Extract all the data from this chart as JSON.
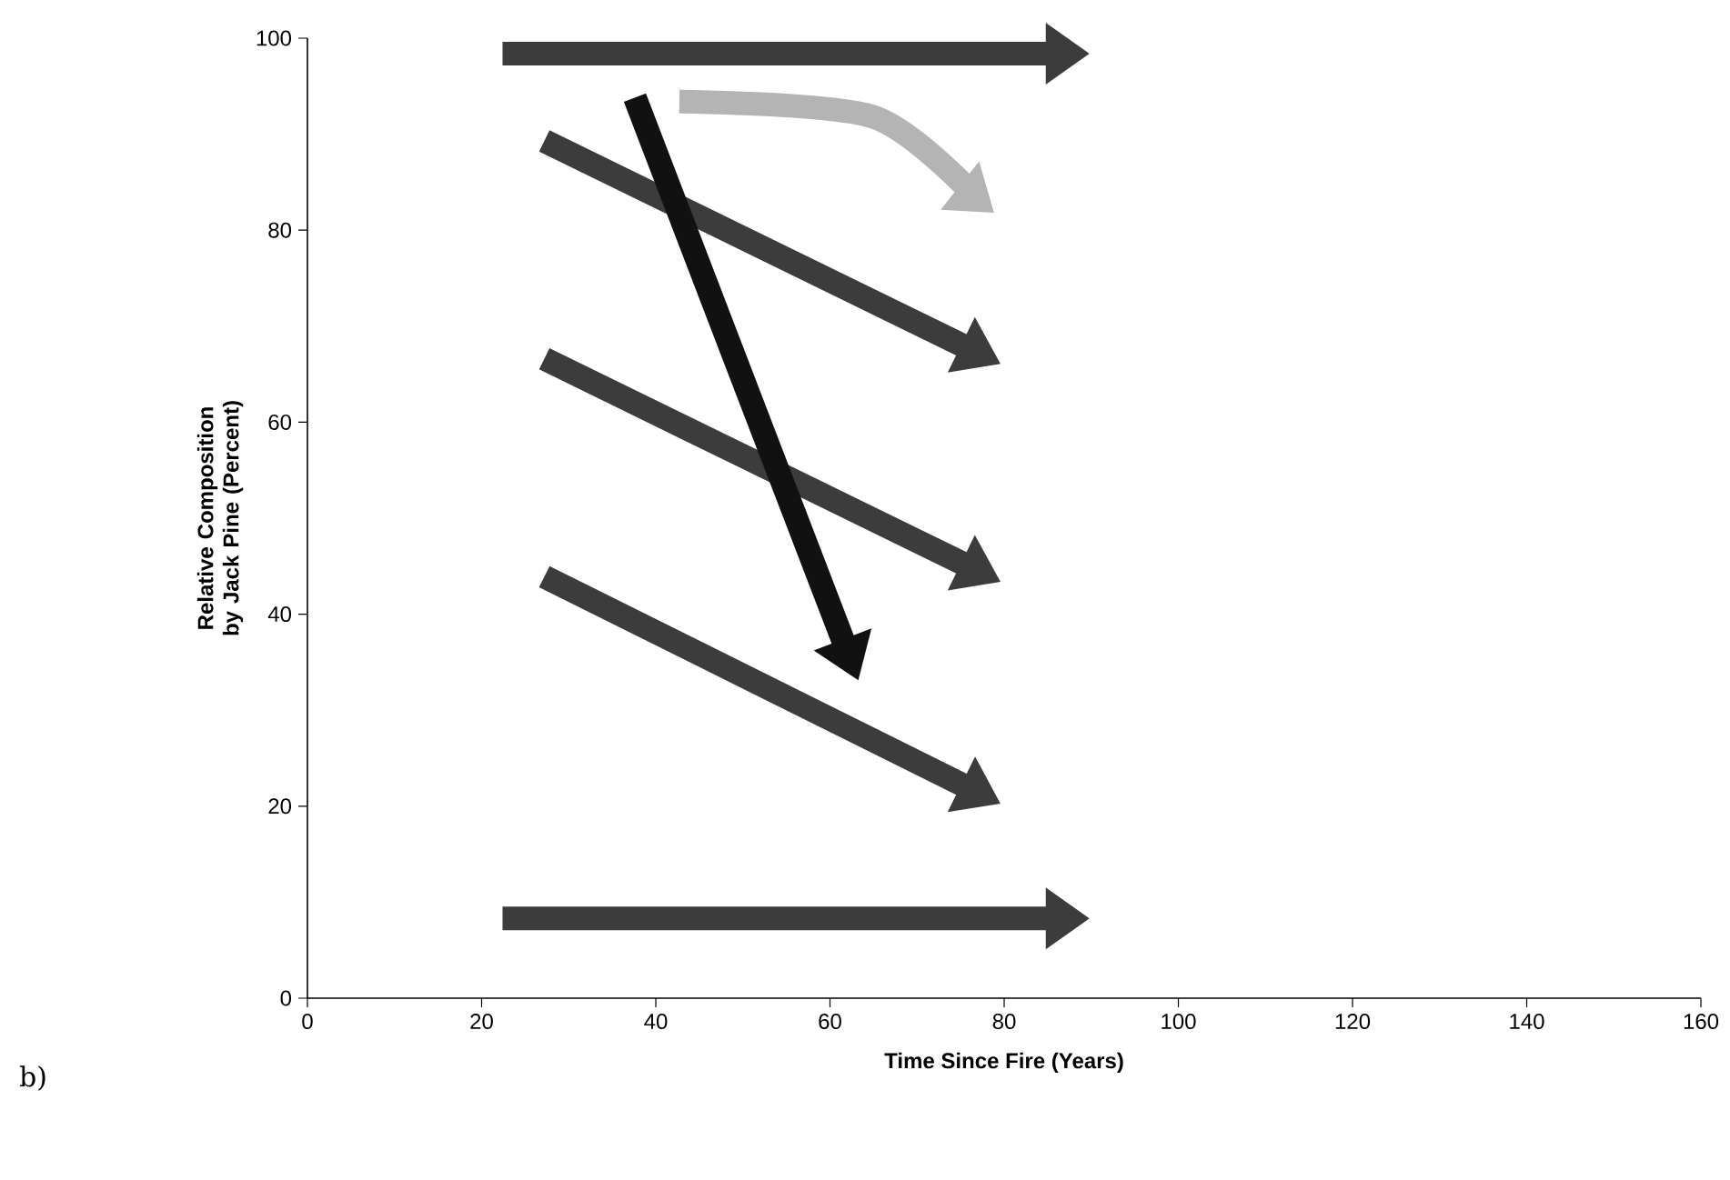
{
  "chart_data": {
    "type": "line",
    "xlabel": "Time Since Fire (Years)",
    "ylabel": "Relative Composition by Jack Pine (Percent)",
    "annotations": [
      "b)"
    ],
    "xlim": [
      0,
      160
    ],
    "ylim": [
      0,
      100
    ],
    "xticks": [
      0,
      20,
      40,
      60,
      80,
      100,
      120,
      140,
      160
    ],
    "yticks": [
      0,
      20,
      40,
      60,
      80,
      100
    ],
    "line_style": "solid",
    "series": [
      {
        "color": "#3c3c3c",
        "x": [
          22.4,
          87.7
        ],
        "values": [
          98.4,
          98.4
        ]
      },
      {
        "color": "#b4b4b4",
        "x": [
          42.7,
          65,
          77.2
        ],
        "values": [
          93.4,
          91.8,
          83
        ]
      },
      {
        "color": "#3c3c3c",
        "x": [
          27.2,
          77.7
        ],
        "values": [
          89.3,
          66.9
        ]
      },
      {
        "color": "#3c3c3c",
        "x": [
          27.2,
          77.7
        ],
        "values": [
          66.6,
          44.2
        ]
      },
      {
        "color": "#3c3c3c",
        "x": [
          27.2,
          77.7
        ],
        "values": [
          43.9,
          21.1
        ]
      },
      {
        "color": "#111111",
        "x": [
          37.6,
          62.5
        ],
        "values": [
          93.8,
          34.9
        ]
      },
      {
        "color": "#3c3c3c",
        "x": [
          22.4,
          87.7
        ],
        "values": [
          8.3,
          8.3
        ]
      }
    ]
  }
}
